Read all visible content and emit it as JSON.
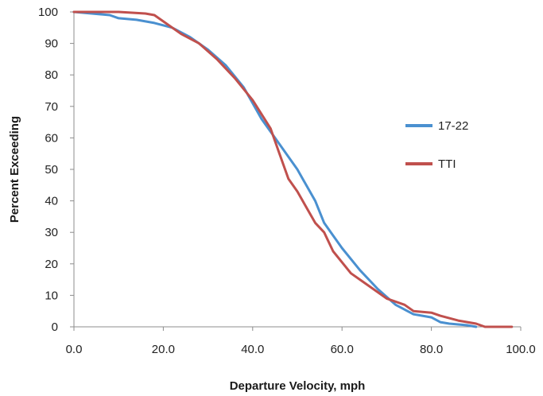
{
  "chart_data": {
    "type": "line",
    "title": "",
    "xlabel": "Departure Velocity, mph",
    "ylabel": "Percent Exceeding",
    "xlim": [
      0,
      100
    ],
    "ylim": [
      0,
      100
    ],
    "x_ticks": [
      0,
      20,
      40,
      60,
      80,
      100
    ],
    "x_tick_labels": [
      "0.0",
      "20.0",
      "40.0",
      "60.0",
      "80.0",
      "100.0"
    ],
    "y_ticks": [
      0,
      10,
      20,
      30,
      40,
      50,
      60,
      70,
      80,
      90,
      100
    ],
    "y_tick_labels": [
      "0",
      "10",
      "20",
      "30",
      "40",
      "50",
      "60",
      "70",
      "80",
      "90",
      "100"
    ],
    "grid": false,
    "legend_position": "right",
    "series": [
      {
        "name": "17-22",
        "color": "#4a90d0",
        "x": [
          0,
          8,
          10,
          14,
          18,
          22,
          26,
          30,
          34,
          38,
          42,
          46,
          50,
          52,
          54,
          56,
          58,
          60,
          64,
          68,
          72,
          76,
          78,
          80,
          82,
          84,
          88,
          90
        ],
        "y": [
          100,
          99,
          98,
          97.5,
          96.5,
          95,
          92,
          88,
          83,
          76,
          66,
          58,
          50,
          45,
          40,
          33,
          29,
          25,
          18,
          12,
          7,
          4,
          3.5,
          3,
          1.5,
          1,
          0.5,
          0
        ]
      },
      {
        "name": "TTI",
        "color": "#c0504d",
        "x": [
          0,
          10,
          16,
          18,
          20,
          24,
          28,
          32,
          36,
          40,
          44,
          46,
          48,
          50,
          52,
          54,
          56,
          58,
          62,
          64,
          66,
          70,
          74,
          76,
          80,
          82,
          86,
          90,
          92,
          98
        ],
        "y": [
          100,
          100,
          99.5,
          99,
          97,
          93,
          90,
          85,
          79,
          72,
          63,
          55,
          47,
          43,
          38,
          33,
          30,
          24,
          17,
          15,
          13,
          9,
          7,
          5,
          4.5,
          3.5,
          2,
          1,
          0,
          0
        ]
      }
    ]
  }
}
